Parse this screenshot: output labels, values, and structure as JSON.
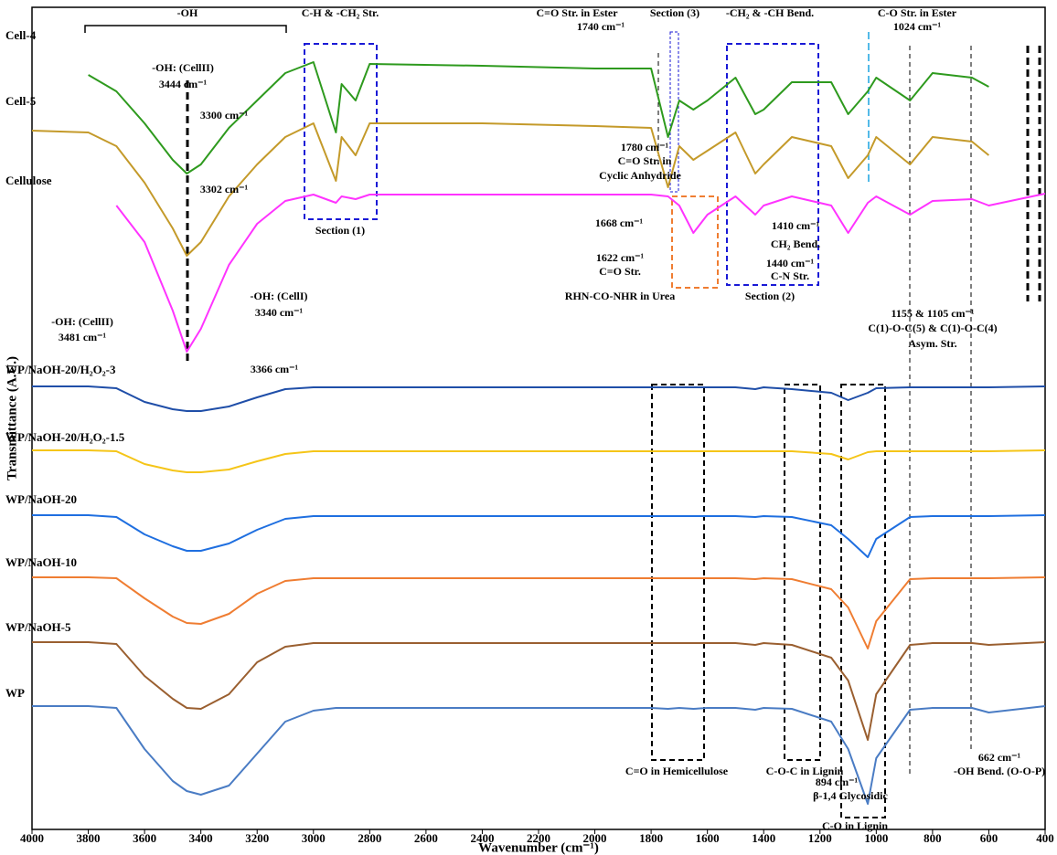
{
  "chart_data": {
    "type": "line",
    "x_label": "Wavenumber (cm⁻¹)",
    "y_label": "Transmittance (A.U.)",
    "x": [
      4000,
      3800,
      3700,
      3600,
      3500,
      3450,
      3400,
      3300,
      3200,
      3100,
      3000,
      2920,
      2900,
      2850,
      2800,
      2400,
      2000,
      1800,
      1740,
      1700,
      1650,
      1600,
      1500,
      1430,
      1400,
      1300,
      1160,
      1100,
      1030,
      1000,
      880,
      800,
      660,
      600,
      400
    ],
    "xlim": [
      4000,
      400
    ],
    "xticks": [
      4000,
      3800,
      3600,
      3400,
      3200,
      3000,
      2800,
      2600,
      2400,
      2200,
      2000,
      1800,
      1600,
      1400,
      1200,
      1000,
      800,
      600,
      400
    ],
    "ylim": [
      0,
      900
    ],
    "series": [
      {
        "name": "Cell-4",
        "color": "#2e9a1e",
        "values": [
          null,
          826,
          808,
          773,
          733,
          718,
          728,
          768,
          798,
          828,
          840,
          763,
          816,
          798,
          838,
          836,
          833,
          833,
          758,
          798,
          788,
          798,
          823,
          783,
          788,
          818,
          818,
          783,
          808,
          823,
          798,
          828,
          823,
          813,
          null
        ]
      },
      {
        "name": "Cell-5",
        "color": "#c49a2a",
        "values": [
          765,
          763,
          748,
          708,
          658,
          628,
          643,
          693,
          728,
          758,
          773,
          710,
          758,
          738,
          773,
          773,
          770,
          768,
          703,
          748,
          733,
          743,
          763,
          718,
          728,
          758,
          748,
          713,
          738,
          758,
          728,
          758,
          753,
          738,
          null
        ]
      },
      {
        "name": "Cellulose",
        "color": "#ff33ff",
        "values": [
          null,
          null,
          683,
          643,
          568,
          523,
          548,
          618,
          663,
          688,
          695,
          686,
          693,
          690,
          695,
          695,
          695,
          695,
          693,
          683,
          653,
          673,
          693,
          673,
          683,
          693,
          683,
          653,
          686,
          693,
          673,
          688,
          690,
          683,
          696
        ]
      },
      {
        "name": "WP/NaOH-20/H₂O₂-3",
        "color": "#1f4ea8",
        "values": [
          485,
          485,
          483,
          468,
          460,
          458,
          458,
          463,
          473,
          482,
          484,
          484,
          484,
          484,
          484,
          484,
          484,
          484,
          484,
          484,
          484,
          484,
          484,
          482,
          484,
          482,
          478,
          470,
          478,
          483,
          484,
          484,
          484,
          484,
          485
        ]
      },
      {
        "name": "WP/NaOH-20/H₂O₂-1.5",
        "color": "#f5c518",
        "values": [
          415,
          415,
          414,
          400,
          393,
          391,
          391,
          394,
          403,
          411,
          414,
          414,
          414,
          414,
          414,
          414,
          414,
          414,
          414,
          414,
          414,
          414,
          414,
          414,
          414,
          414,
          411,
          405,
          413,
          414,
          414,
          414,
          414,
          414,
          415
        ]
      },
      {
        "name": "WP/NaOH-20",
        "color": "#1f6fe0",
        "values": [
          344,
          344,
          342,
          323,
          310,
          305,
          305,
          313,
          328,
          340,
          343,
          343,
          343,
          343,
          343,
          343,
          343,
          343,
          343,
          343,
          343,
          343,
          343,
          342,
          343,
          342,
          333,
          318,
          298,
          318,
          342,
          343,
          343,
          343,
          344
        ]
      },
      {
        "name": "WP/NaOH-10",
        "color": "#ef7d32",
        "values": [
          276,
          276,
          275,
          253,
          233,
          226,
          225,
          236,
          258,
          272,
          275,
          275,
          275,
          275,
          275,
          275,
          275,
          275,
          275,
          275,
          275,
          275,
          275,
          274,
          275,
          274,
          263,
          243,
          198,
          228,
          274,
          275,
          275,
          275,
          276
        ]
      },
      {
        "name": "WP/NaOH-5",
        "color": "#9a5f30",
        "values": [
          205,
          205,
          203,
          168,
          143,
          133,
          132,
          148,
          183,
          200,
          204,
          204,
          204,
          204,
          204,
          204,
          204,
          204,
          204,
          204,
          204,
          204,
          204,
          202,
          204,
          202,
          188,
          163,
          98,
          148,
          202,
          204,
          204,
          202,
          205
        ]
      },
      {
        "name": "WP",
        "color": "#4a7cc4",
        "values": [
          135,
          135,
          133,
          88,
          53,
          42,
          38,
          48,
          83,
          118,
          130,
          133,
          133,
          133,
          133,
          133,
          133,
          133,
          132,
          133,
          132,
          133,
          133,
          131,
          133,
          132,
          118,
          88,
          28,
          78,
          131,
          133,
          133,
          128,
          135
        ]
      }
    ],
    "annotations": [
      "-OH",
      "C-H & -CH₂ Str.",
      "C=O Str. in Ester",
      "1740 cm⁻¹",
      "Section (3)",
      "-CH₂ & -CH Bend.",
      "C-O Str. in Ester",
      "1024 cm⁻¹",
      "-OH: (CellII)",
      "3444 cm⁻¹",
      "3300 cm⁻¹",
      "3302 cm⁻¹",
      "1780 cm⁻¹",
      "C=O Str. in",
      "Cyclic Anhydride",
      "Section (1)",
      "1668 cm⁻¹",
      "1622 cm⁻¹",
      "C=O Str.",
      "RHN-CO-NHR in Urea",
      "1410 cm⁻¹",
      "CH₂ Bend.",
      "1440 cm⁻¹",
      "C-N Str.",
      "Section (2)",
      "-OH: (CellI)",
      "3340 cm⁻¹",
      "-OH: (CellII)",
      "3481 cm⁻¹",
      "1155 & 1105 cm⁻¹",
      "C(1)-O-C(5) & C(1)-O-C(4)",
      "Asym. Str.",
      "3366 cm⁻¹",
      "C=O in Hemicellulose",
      "C-O-C in Lignin",
      "662 cm⁻¹",
      "-OH Bend. (O-O-P)",
      "894 cm⁻¹",
      "β-1,4 Glycosidic",
      "C-O in Lignin"
    ]
  }
}
